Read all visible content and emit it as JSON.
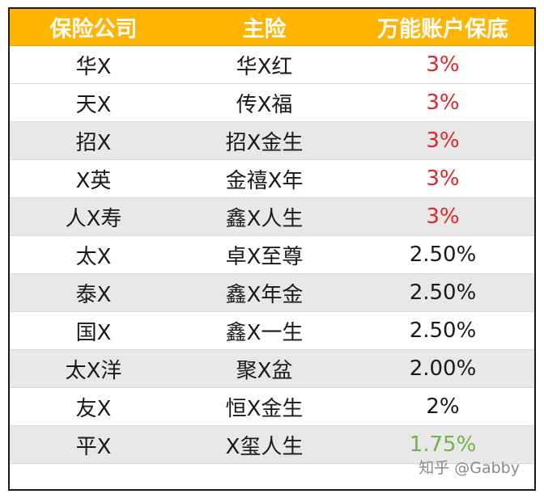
{
  "table": {
    "headers": [
      "保险公司",
      "主险",
      "万能账户保底"
    ],
    "rows": [
      {
        "company": "华X",
        "product": "华X红",
        "rate": "3%",
        "color": "#e0262a"
      },
      {
        "company": "天X",
        "product": "传X福",
        "rate": "3%",
        "color": "#e0262a"
      },
      {
        "company": "招X",
        "product": "招X金生",
        "rate": "3%",
        "color": "#e0262a"
      },
      {
        "company": "X英",
        "product": "金禧X年",
        "rate": "3%",
        "color": "#e0262a"
      },
      {
        "company": "人X寿",
        "product": "鑫X人生",
        "rate": "3%",
        "color": "#e0262a"
      },
      {
        "company": "太X",
        "product": "卓X至尊",
        "rate": "2.50%",
        "color": "#1a1a1a"
      },
      {
        "company": "泰X",
        "product": "鑫X年金",
        "rate": "2.50%",
        "color": "#1a1a1a"
      },
      {
        "company": "国X",
        "product": "鑫X一生",
        "rate": "2.50%",
        "color": "#1a1a1a"
      },
      {
        "company": "太X洋",
        "product": "聚X盆",
        "rate": "2.00%",
        "color": "#1a1a1a"
      },
      {
        "company": "友X",
        "product": "恒X金生",
        "rate": "2%",
        "color": "#1a1a1a"
      },
      {
        "company": "平X",
        "product": "X玺人生",
        "rate": "1.75%",
        "color": "#6fb44a"
      }
    ]
  },
  "watermark": {
    "text": "知乎 @Gabby"
  },
  "colors": {
    "header_bg": "#ffb400",
    "stripe_bg": "#e8e8e8",
    "rate_high": "#e0262a",
    "rate_mid": "#1a1a1a",
    "rate_low": "#6fb44a"
  }
}
